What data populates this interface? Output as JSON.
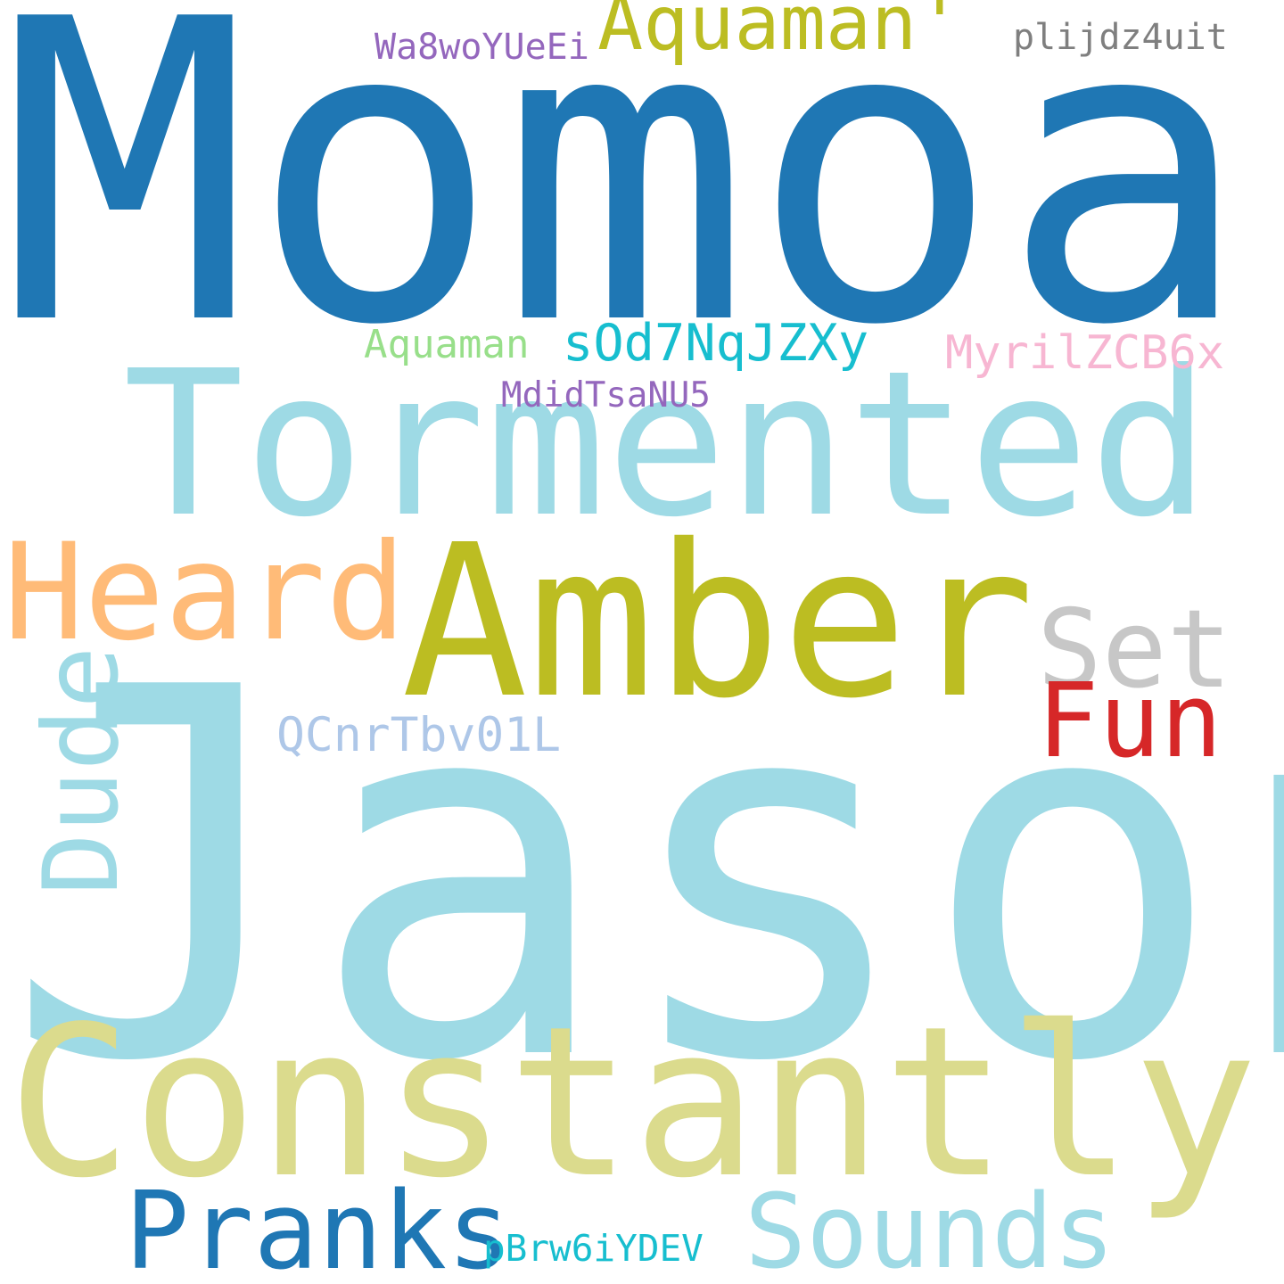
{
  "words": [
    {
      "key": "momoa",
      "text": "Momoa",
      "color": "#1f77b4"
    },
    {
      "key": "jason",
      "text": "Jason",
      "color": "#9edae5"
    },
    {
      "key": "tormented",
      "text": "Tormented",
      "color": "#9edae5"
    },
    {
      "key": "amber",
      "text": "Amber",
      "color": "#bcbd22"
    },
    {
      "key": "constantly",
      "text": "Constantly",
      "color": "#dbdb8d"
    },
    {
      "key": "heard",
      "text": "Heard",
      "color": "#ffbb78"
    },
    {
      "key": "set",
      "text": "Set",
      "color": "#c7c7c7"
    },
    {
      "key": "fun",
      "text": "Fun",
      "color": "#d62728"
    },
    {
      "key": "dude",
      "text": "Dude",
      "color": "#9edae5"
    },
    {
      "key": "pranks",
      "text": "Pranks",
      "color": "#1f77b4"
    },
    {
      "key": "sounds",
      "text": "Sounds",
      "color": "#9edae5"
    },
    {
      "key": "aquaman_apos",
      "text": "Aquaman'",
      "color": "#bcbd22"
    },
    {
      "key": "aquaman",
      "text": "Aquaman",
      "color": "#98df8a"
    },
    {
      "key": "wa8wo",
      "text": "Wa8woYUeEi",
      "color": "#9467bd"
    },
    {
      "key": "plijdz",
      "text": "plijdz4uit",
      "color": "#7f7f7f"
    },
    {
      "key": "sod7",
      "text": "sOd7NqJZXy",
      "color": "#17becf"
    },
    {
      "key": "myril",
      "text": "MyrilZCB6x",
      "color": "#f7b6d2"
    },
    {
      "key": "mdid",
      "text": "MdidTsaNU5",
      "color": "#9467bd"
    },
    {
      "key": "qcnr",
      "text": "QCnrTbv01L",
      "color": "#aec7e8"
    },
    {
      "key": "pbrw",
      "text": "pBrw6iYDEV",
      "color": "#17becf"
    }
  ]
}
